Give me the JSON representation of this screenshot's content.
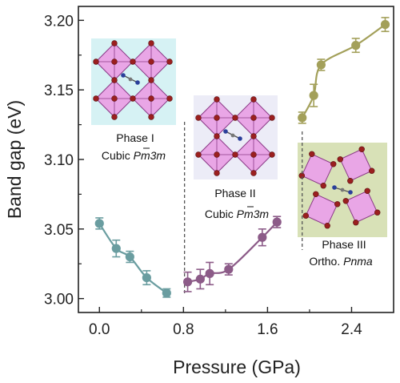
{
  "chart_data": {
    "type": "scatter",
    "title": "",
    "xlabel": "Pressure (GPa)",
    "ylabel": "Band gap (eV)",
    "xlim": [
      -0.2,
      2.8
    ],
    "ylim": [
      2.99,
      3.21
    ],
    "x_ticks": [
      "0.0",
      "0.8",
      "1.6",
      "2.4"
    ],
    "x_tick_values": [
      0.0,
      0.8,
      1.6,
      2.4
    ],
    "y_ticks": [
      "3.00",
      "3.05",
      "3.10",
      "3.15",
      "3.20"
    ],
    "y_tick_values": [
      3.0,
      3.05,
      3.1,
      3.15,
      3.2
    ],
    "grid": false,
    "phase_boundaries": [
      0.81,
      1.93
    ],
    "series": [
      {
        "color": "#6a9da0",
        "x": [
          0.0,
          0.16,
          0.29,
          0.45,
          0.64
        ],
        "y": [
          3.054,
          3.036,
          3.03,
          3.015,
          3.004
        ],
        "err": [
          0.004,
          0.006,
          0.004,
          0.005,
          0.003
        ]
      },
      {
        "color": "#8c5b88",
        "x": [
          0.84,
          0.96,
          1.05,
          1.23,
          1.55,
          1.69
        ],
        "y": [
          3.012,
          3.014,
          3.018,
          3.021,
          3.044,
          3.055
        ],
        "err": [
          0.007,
          0.007,
          0.008,
          0.004,
          0.006,
          0.004
        ]
      },
      {
        "color": "#a3a05a",
        "x": [
          1.93,
          2.04,
          2.11,
          2.44,
          2.72
        ],
        "y": [
          3.13,
          3.146,
          3.168,
          3.182,
          3.197
        ],
        "err": [
          0.004,
          0.008,
          0.004,
          0.005,
          0.005
        ]
      }
    ],
    "annotations": {
      "phase1": {
        "label": "Phase I",
        "sub_prefix": "Cubic ",
        "sub_formula": "Pm3m",
        "bg": "#d6f2f4"
      },
      "phase2": {
        "label": "Phase II",
        "sub_prefix": "Cubic ",
        "sub_formula": "Pm3m",
        "bg": "#ececf7"
      },
      "phase3": {
        "label": "Phase III",
        "sub_prefix": "Ortho. ",
        "sub_formula": "Pnma",
        "bg": "#d8e1b7"
      }
    }
  }
}
